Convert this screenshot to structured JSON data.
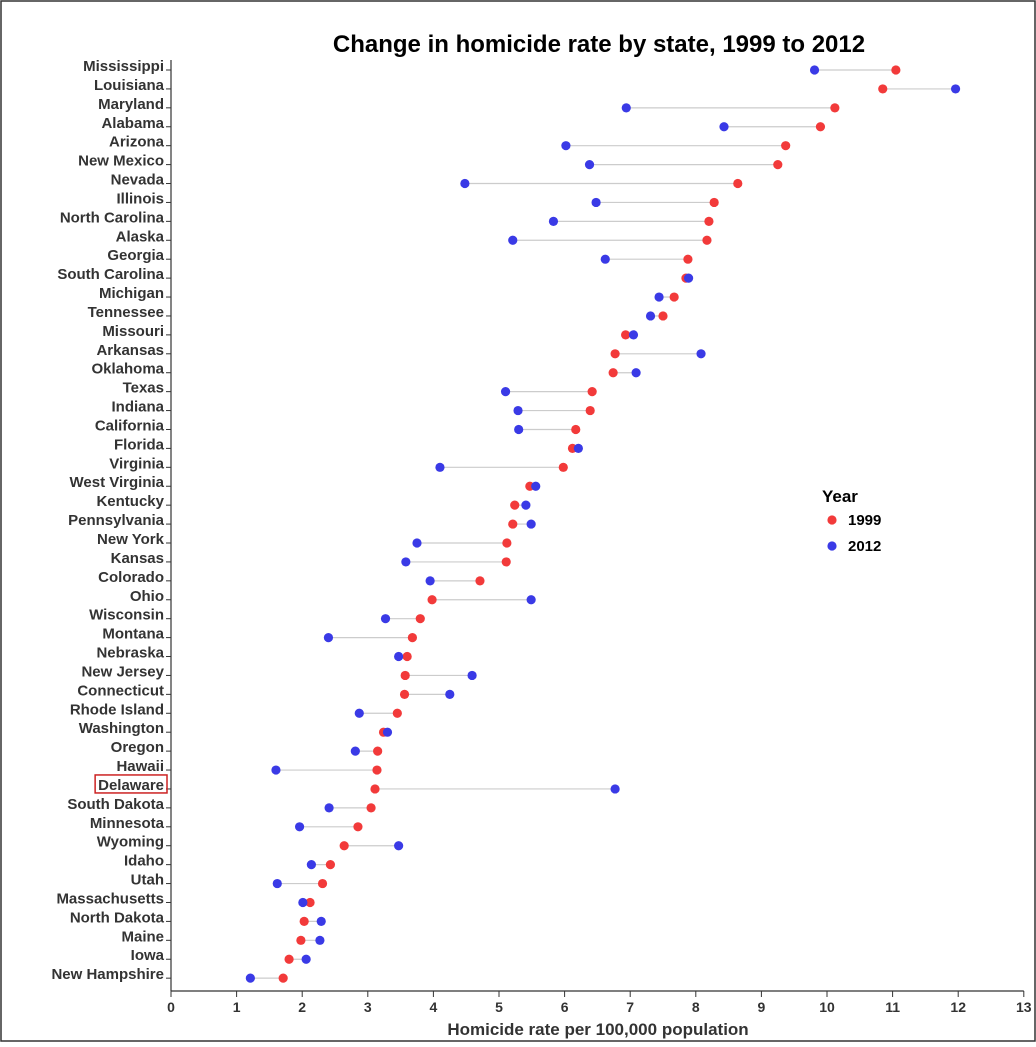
{
  "chart_data": {
    "type": "scatter",
    "subtype": "dumbbell",
    "title": "Change in homicide rate by state, 1999 to 2012",
    "xlabel": "Homicide rate per 100,000 population",
    "ylabel": "",
    "xlim": [
      0,
      13
    ],
    "xticks": [
      "0",
      "1",
      "2",
      "3",
      "4",
      "5",
      "6",
      "7",
      "8",
      "9",
      "10",
      "11",
      "12",
      "13"
    ],
    "grid": false,
    "legend": {
      "title": "Year",
      "position": "right",
      "entries": [
        "1999",
        "2012"
      ]
    },
    "colors": {
      "1999": "#f23a3a",
      "2012": "#3a3ae6",
      "connector": "#cccccc",
      "highlight": "#cc2222"
    },
    "highlight": "Delaware",
    "categories": [
      "Mississippi",
      "Louisiana",
      "Maryland",
      "Alabama",
      "Arizona",
      "New Mexico",
      "Nevada",
      "Illinois",
      "North Carolina",
      "Alaska",
      "Georgia",
      "South Carolina",
      "Michigan",
      "Tennessee",
      "Missouri",
      "Arkansas",
      "Oklahoma",
      "Texas",
      "Indiana",
      "California",
      "Florida",
      "Virginia",
      "West Virginia",
      "Kentucky",
      "Pennsylvania",
      "New York",
      "Kansas",
      "Colorado",
      "Ohio",
      "Wisconsin",
      "Montana",
      "Nebraska",
      "New Jersey",
      "Connecticut",
      "Rhode Island",
      "Washington",
      "Oregon",
      "Hawaii",
      "Delaware",
      "South Dakota",
      "Minnesota",
      "Wyoming",
      "Idaho",
      "Utah",
      "Massachusetts",
      "North Dakota",
      "Maine",
      "Iowa",
      "New Hampshire"
    ],
    "series": [
      {
        "name": "1999",
        "values": [
          11.05,
          10.85,
          10.12,
          9.9,
          9.37,
          9.25,
          8.64,
          8.28,
          8.2,
          8.17,
          7.88,
          7.85,
          7.67,
          7.5,
          6.93,
          6.77,
          6.74,
          6.42,
          6.39,
          6.17,
          6.12,
          5.98,
          5.47,
          5.24,
          5.21,
          5.12,
          5.11,
          4.71,
          3.98,
          3.8,
          3.68,
          3.6,
          3.57,
          3.56,
          3.45,
          3.24,
          3.15,
          3.14,
          3.11,
          3.05,
          2.85,
          2.64,
          2.43,
          2.31,
          2.12,
          2.03,
          1.98,
          1.8,
          1.71
        ]
      },
      {
        "name": "2012",
        "values": [
          9.81,
          11.96,
          6.94,
          8.43,
          6.02,
          6.38,
          4.48,
          6.48,
          5.83,
          5.21,
          6.62,
          7.89,
          7.44,
          7.31,
          7.05,
          8.08,
          7.09,
          5.1,
          5.29,
          5.3,
          6.21,
          4.1,
          5.56,
          5.41,
          5.49,
          3.75,
          3.58,
          3.95,
          5.49,
          3.27,
          2.4,
          3.47,
          4.59,
          4.25,
          2.87,
          3.3,
          2.81,
          1.6,
          6.77,
          2.41,
          1.96,
          3.47,
          2.14,
          1.62,
          2.01,
          2.29,
          2.27,
          2.06,
          1.21
        ]
      }
    ]
  }
}
